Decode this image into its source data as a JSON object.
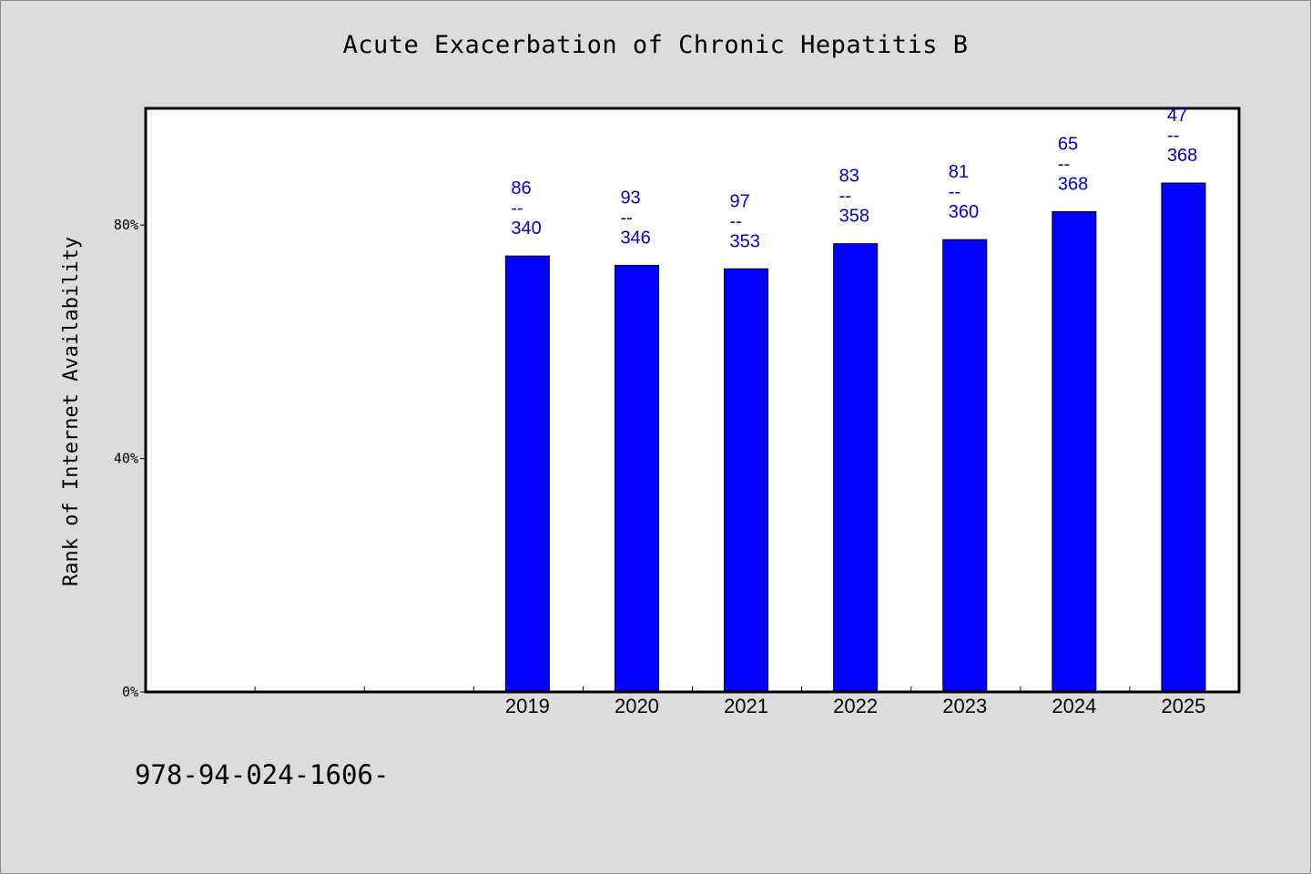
{
  "chart_data": {
    "type": "bar",
    "title": "Acute Exacerbation of Chronic Hepatitis B",
    "xlabel": "",
    "ylabel": "Rank of Internet Availability",
    "categories": [
      "",
      "",
      "",
      "2019",
      "2020",
      "2021",
      "2022",
      "2023",
      "2024",
      "2025"
    ],
    "values": [
      null,
      null,
      null,
      74.7,
      73.1,
      72.5,
      76.8,
      77.5,
      82.3,
      87.2
    ],
    "data_labels": [
      {
        "top": "86",
        "sep": "--",
        "bottom": "340"
      },
      {
        "top": "93",
        "sep": "--",
        "bottom": "346"
      },
      {
        "top": "97",
        "sep": "--",
        "bottom": "353"
      },
      {
        "top": "83",
        "sep": "--",
        "bottom": "358"
      },
      {
        "top": "81",
        "sep": "--",
        "bottom": "360"
      },
      {
        "top": "65",
        "sep": "--",
        "bottom": "368"
      },
      {
        "top": "47",
        "sep": "--",
        "bottom": "368"
      }
    ],
    "ylim": [
      0,
      100
    ],
    "yticks": [
      {
        "value": 0,
        "label": "0%"
      },
      {
        "value": 40,
        "label": "40%"
      },
      {
        "value": 80,
        "label": "80%"
      }
    ],
    "grid": false,
    "legend": "none",
    "colors": {
      "bar": "#0000ff",
      "label": "#0000cc",
      "background": "#dcdcdc",
      "plot": "#ffffff"
    }
  },
  "footer": {
    "id_text": "978-94-024-1606-"
  }
}
